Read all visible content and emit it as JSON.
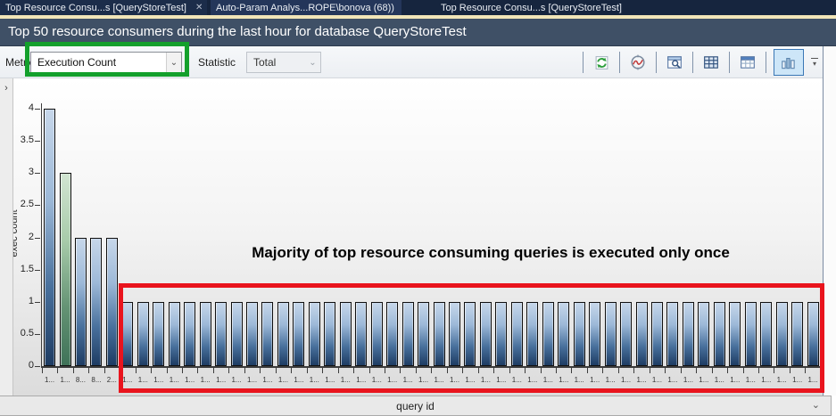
{
  "tabs": [
    {
      "label": "Top Resource Consu...s [QueryStoreTest]",
      "active": true
    },
    {
      "label": "Auto-Param Analys...ROPE\\bonova (68))",
      "active": false
    },
    {
      "label": "Top Resource Consu...s [QueryStoreTest]",
      "active": false
    }
  ],
  "header": {
    "title": "Top 50 resource consumers during the last hour for database QueryStoreTest"
  },
  "toolbar": {
    "metric_label": "Metric",
    "metric_value": "Execution Count",
    "statistic_label": "Statistic",
    "statistic_value": "Total",
    "icons": [
      "refresh-icon",
      "track-query-icon",
      "view-query-text-icon",
      "grid-view-icon",
      "grid-view-extra-icon",
      "chart-view-icon",
      "toolbar-overflow-icon"
    ],
    "selected_view": "chart-view"
  },
  "chart_data": {
    "type": "bar",
    "title": "",
    "xlabel": "query id",
    "ylabel": "exec count",
    "ylim": [
      0,
      4
    ],
    "yticks": [
      0,
      0.5,
      1,
      1.5,
      2,
      2.5,
      3,
      3.5,
      4
    ],
    "grid": false,
    "legend": "none",
    "categories": [
      "1...",
      "1...",
      "8...",
      "8...",
      "2...",
      "1...",
      "1...",
      "1...",
      "1...",
      "1...",
      "1...",
      "1...",
      "1...",
      "1...",
      "1...",
      "1...",
      "1...",
      "1...",
      "1...",
      "1...",
      "1...",
      "1...",
      "1...",
      "1...",
      "1...",
      "1...",
      "1...",
      "1...",
      "1...",
      "1...",
      "1...",
      "1...",
      "1...",
      "1...",
      "1...",
      "1...",
      "1...",
      "1...",
      "1...",
      "1...",
      "1...",
      "1...",
      "1...",
      "1...",
      "1...",
      "1...",
      "1...",
      "1...",
      "1...",
      "1..."
    ],
    "values": [
      4,
      3,
      2,
      2,
      2,
      1,
      1,
      1,
      1,
      1,
      1,
      1,
      1,
      1,
      1,
      1,
      1,
      1,
      1,
      1,
      1,
      1,
      1,
      1,
      1,
      1,
      1,
      1,
      1,
      1,
      1,
      1,
      1,
      1,
      1,
      1,
      1,
      1,
      1,
      1,
      1,
      1,
      1,
      1,
      1,
      1,
      1,
      1,
      1,
      1
    ],
    "green_bar_index": 1,
    "annotation": "Majority of top resource consuming queries is executed only once",
    "bar_color_blue": "#48709c",
    "bar_color_green": "#649374"
  },
  "highlights": {
    "metric_box_color": "#14a02c",
    "executed_once_box_color": "#e9141d"
  },
  "colors": {
    "tabbar_bg": "#16253e",
    "tab_underline": "#f1e5b8",
    "titlebar_bg": "#3f5066",
    "toolbar_bg": "#f0f3f7"
  }
}
